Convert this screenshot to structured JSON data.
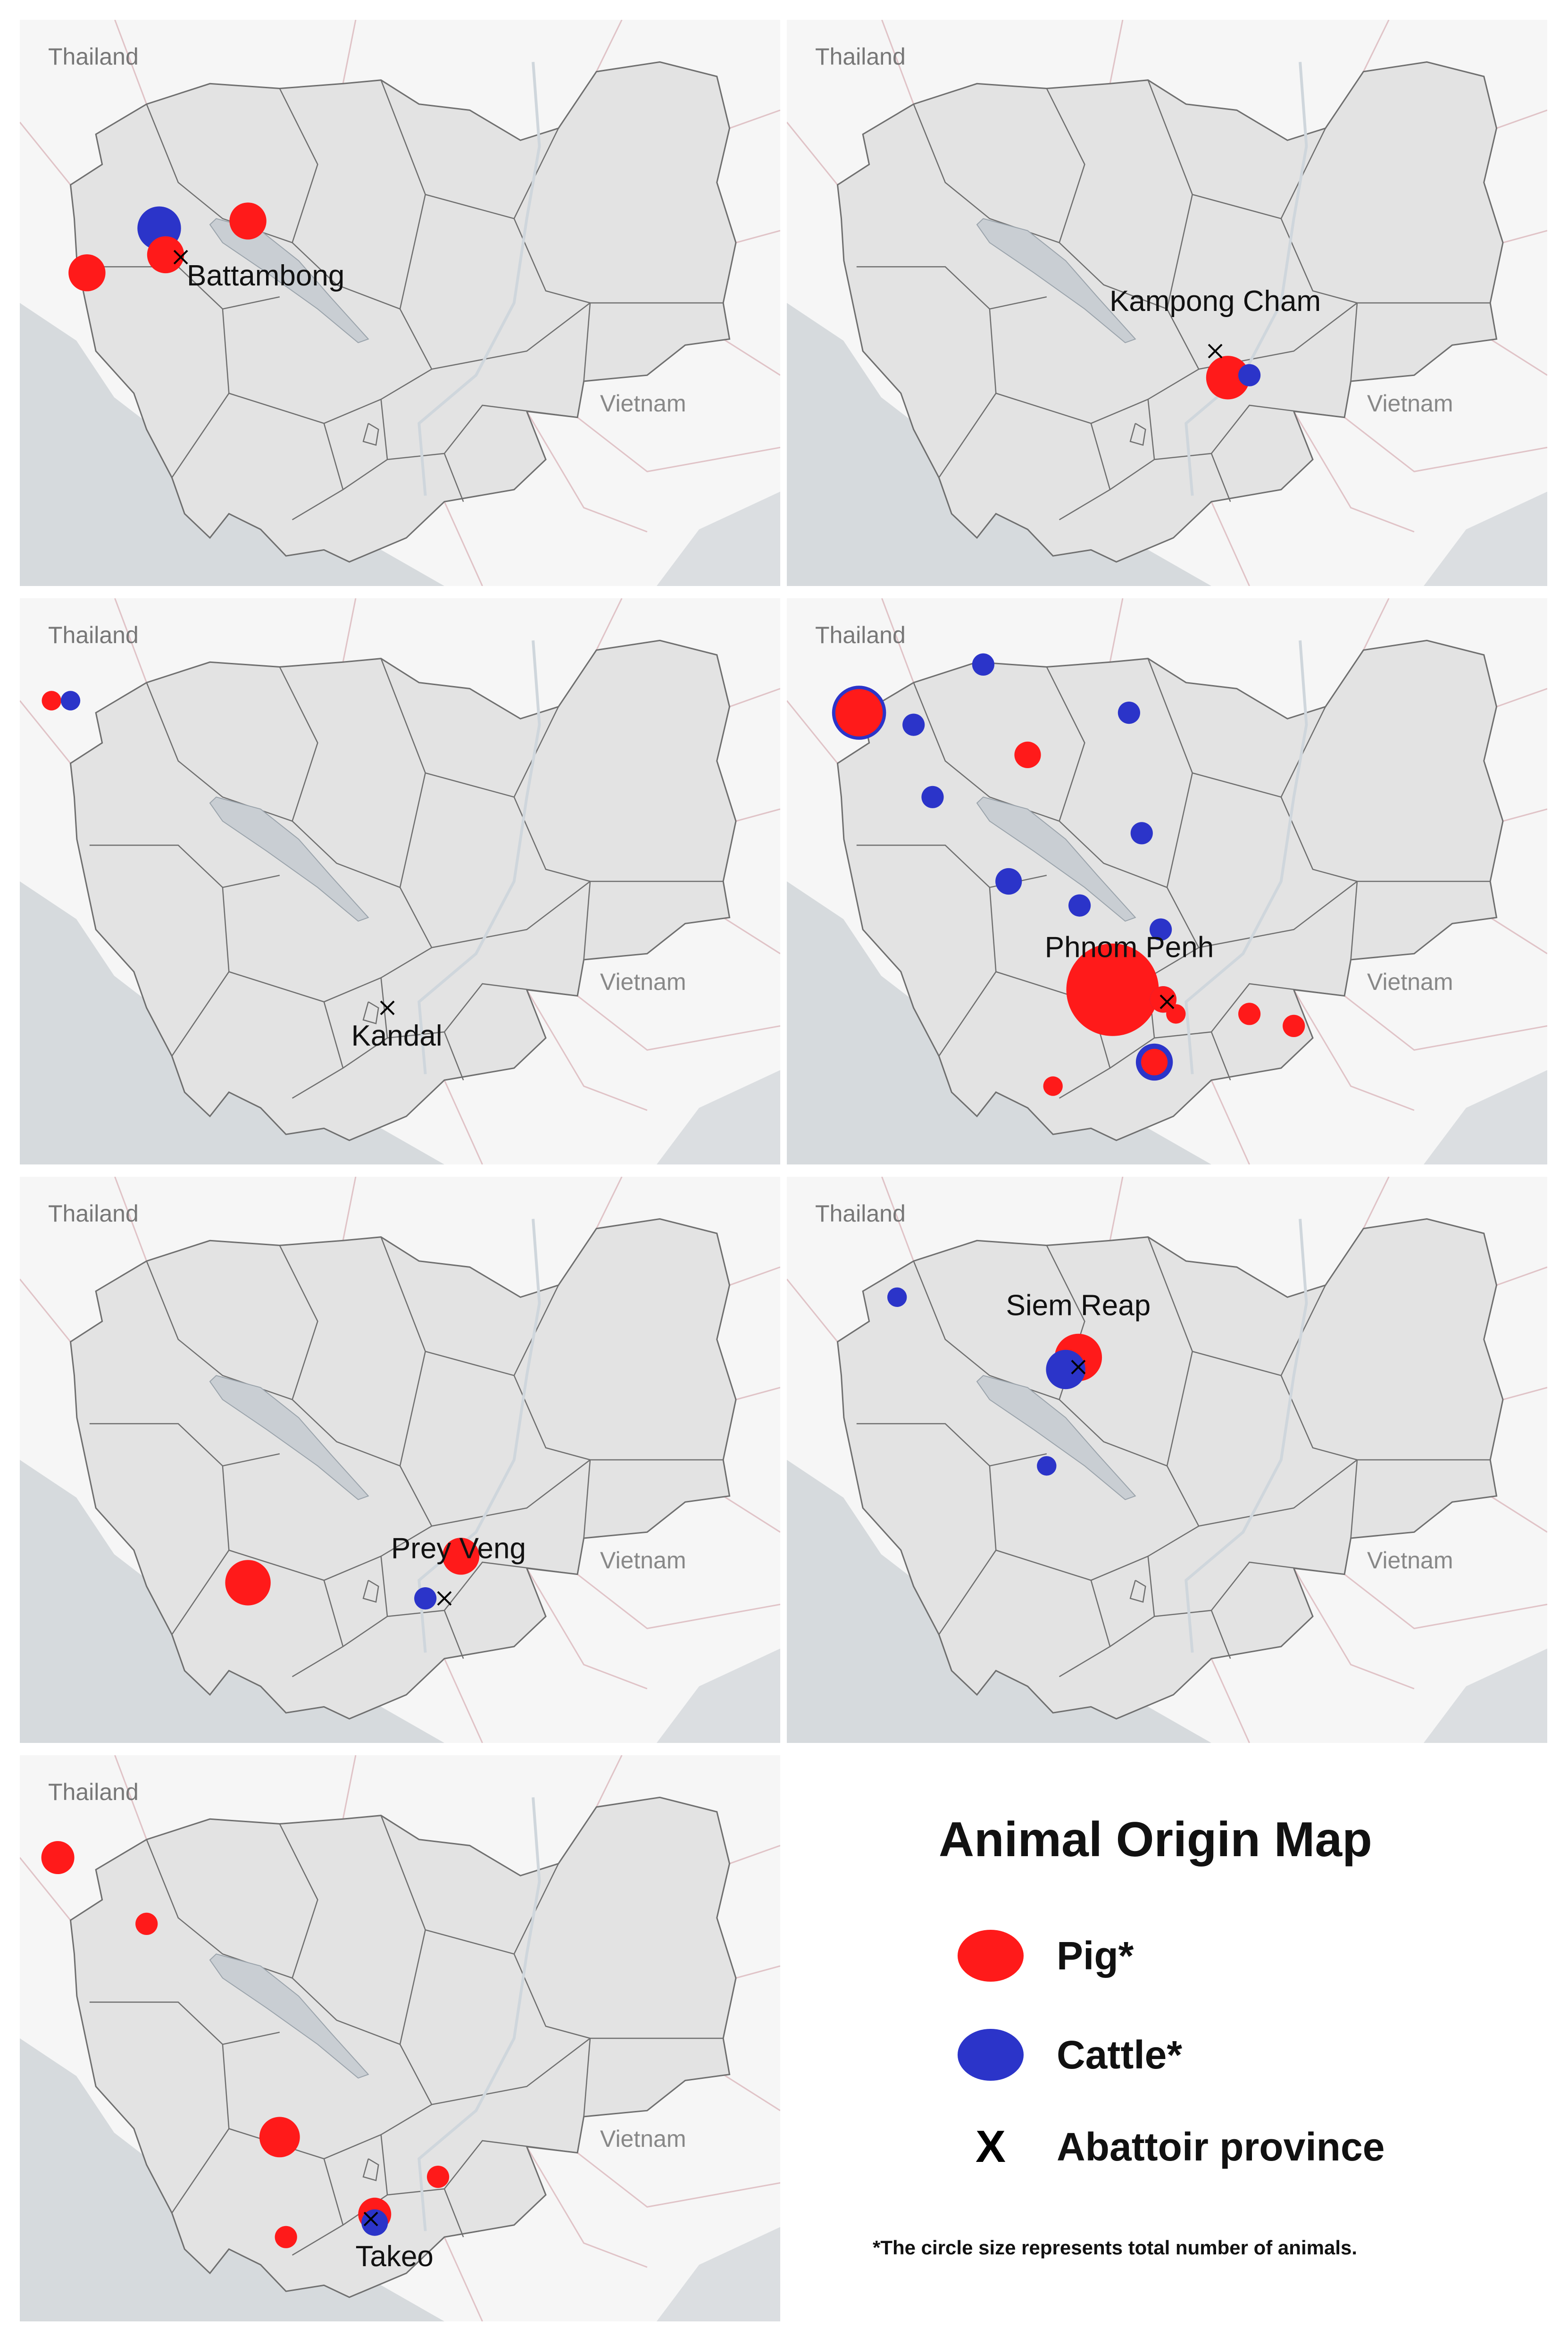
{
  "colors": {
    "pig": "#ff1a1a",
    "cattle": "#2b34c9",
    "land": "#e3e3e3",
    "water": "#c9ced3",
    "border": "#6f6f6f",
    "outside": "#f6f6f6"
  },
  "countries": {
    "thailand": "Thailand",
    "vietnam": "Vietnam"
  },
  "panels": [
    {
      "abattoir": "Battambong",
      "points": [
        {
          "type": "cattle",
          "size": 0.18,
          "lon": 103.05,
          "lat": 13.22
        },
        {
          "type": "pig",
          "size": 0.12,
          "lon": 103.75,
          "lat": 13.28
        },
        {
          "type": "pig",
          "size": 0.12,
          "lon": 103.1,
          "lat": 13.0
        },
        {
          "type": "pig",
          "size": 0.12,
          "lon": 102.48,
          "lat": 12.85
        }
      ]
    },
    {
      "abattoir": "Kampong Cham",
      "points": [
        {
          "type": "pig",
          "size": 0.18,
          "lon": 105.43,
          "lat": 11.98
        },
        {
          "type": "cattle",
          "size": 0.03,
          "lon": 105.6,
          "lat": 12.0
        }
      ]
    },
    {
      "abattoir": "Kandal",
      "points": [
        {
          "type": "pig",
          "size": 0.02,
          "lon": 102.2,
          "lat": 14.1
        },
        {
          "type": "cattle",
          "size": 0.02,
          "lon": 102.35,
          "lat": 14.1
        }
      ]
    },
    {
      "abattoir": "Phnom Penh",
      "points": [
        {
          "type": "cattle",
          "size": 0.3,
          "lon": 102.52,
          "lat": 14.0
        },
        {
          "type": "pig",
          "size": 0.22,
          "lon": 102.52,
          "lat": 14.0
        },
        {
          "type": "cattle",
          "size": 0.03,
          "lon": 103.5,
          "lat": 14.4
        },
        {
          "type": "cattle",
          "size": 0.03,
          "lon": 102.95,
          "lat": 13.9
        },
        {
          "type": "cattle",
          "size": 0.03,
          "lon": 104.65,
          "lat": 14.0
        },
        {
          "type": "pig",
          "size": 0.05,
          "lon": 103.85,
          "lat": 13.65
        },
        {
          "type": "cattle",
          "size": 0.03,
          "lon": 103.1,
          "lat": 13.3
        },
        {
          "type": "cattle",
          "size": 0.03,
          "lon": 104.75,
          "lat": 13.0
        },
        {
          "type": "cattle",
          "size": 0.05,
          "lon": 103.7,
          "lat": 12.6
        },
        {
          "type": "cattle",
          "size": 0.03,
          "lon": 104.26,
          "lat": 12.4
        },
        {
          "type": "cattle",
          "size": 0.03,
          "lon": 104.9,
          "lat": 12.2
        },
        {
          "type": "pig",
          "size": 1.0,
          "lon": 104.52,
          "lat": 11.7
        },
        {
          "type": "cattle",
          "size": 0.05,
          "lon": 104.92,
          "lat": 11.62
        },
        {
          "type": "pig",
          "size": 0.05,
          "lon": 104.92,
          "lat": 11.62
        },
        {
          "type": "pig",
          "size": 0.02,
          "lon": 105.02,
          "lat": 11.5
        },
        {
          "type": "pig",
          "size": 0.03,
          "lon": 105.6,
          "lat": 11.5
        },
        {
          "type": "pig",
          "size": 0.03,
          "lon": 105.95,
          "lat": 11.4
        },
        {
          "type": "cattle",
          "size": 0.12,
          "lon": 104.85,
          "lat": 11.1
        },
        {
          "type": "pig",
          "size": 0.05,
          "lon": 104.85,
          "lat": 11.1
        },
        {
          "type": "pig",
          "size": 0.02,
          "lon": 104.05,
          "lat": 10.9
        }
      ]
    },
    {
      "abattoir": "Prey Veng",
      "points": [
        {
          "type": "pig",
          "size": 0.2,
          "lon": 103.75,
          "lat": 11.58
        },
        {
          "type": "pig",
          "size": 0.12,
          "lon": 105.43,
          "lat": 11.8
        },
        {
          "type": "cattle",
          "size": 0.03,
          "lon": 105.15,
          "lat": 11.45
        }
      ]
    },
    {
      "abattoir": "Siem Reap",
      "points": [
        {
          "type": "pig",
          "size": 0.22,
          "lon": 104.25,
          "lat": 13.45
        },
        {
          "type": "cattle",
          "size": 0.14,
          "lon": 104.15,
          "lat": 13.35
        },
        {
          "type": "cattle",
          "size": 0.02,
          "lon": 102.82,
          "lat": 13.95
        },
        {
          "type": "cattle",
          "size": 0.02,
          "lon": 104.0,
          "lat": 12.55
        }
      ]
    },
    {
      "abattoir": "Takeo",
      "points": [
        {
          "type": "pig",
          "size": 0.09,
          "lon": 102.25,
          "lat": 14.1
        },
        {
          "type": "pig",
          "size": 0.03,
          "lon": 102.95,
          "lat": 13.55
        },
        {
          "type": "pig",
          "size": 0.15,
          "lon": 104.0,
          "lat": 11.78
        },
        {
          "type": "pig",
          "size": 0.09,
          "lon": 104.75,
          "lat": 11.14
        },
        {
          "type": "cattle",
          "size": 0.05,
          "lon": 104.75,
          "lat": 11.07
        },
        {
          "type": "pig",
          "size": 0.03,
          "lon": 105.25,
          "lat": 11.45
        },
        {
          "type": "pig",
          "size": 0.03,
          "lon": 104.05,
          "lat": 10.95
        }
      ]
    }
  ],
  "legend": {
    "title": "Animal Origin Map",
    "pig": "Pig*",
    "cattle": "Cattle*",
    "abattoir_symbol": "X",
    "abattoir": "Abattoir province",
    "note": "*The circle size represents total number of animals."
  }
}
